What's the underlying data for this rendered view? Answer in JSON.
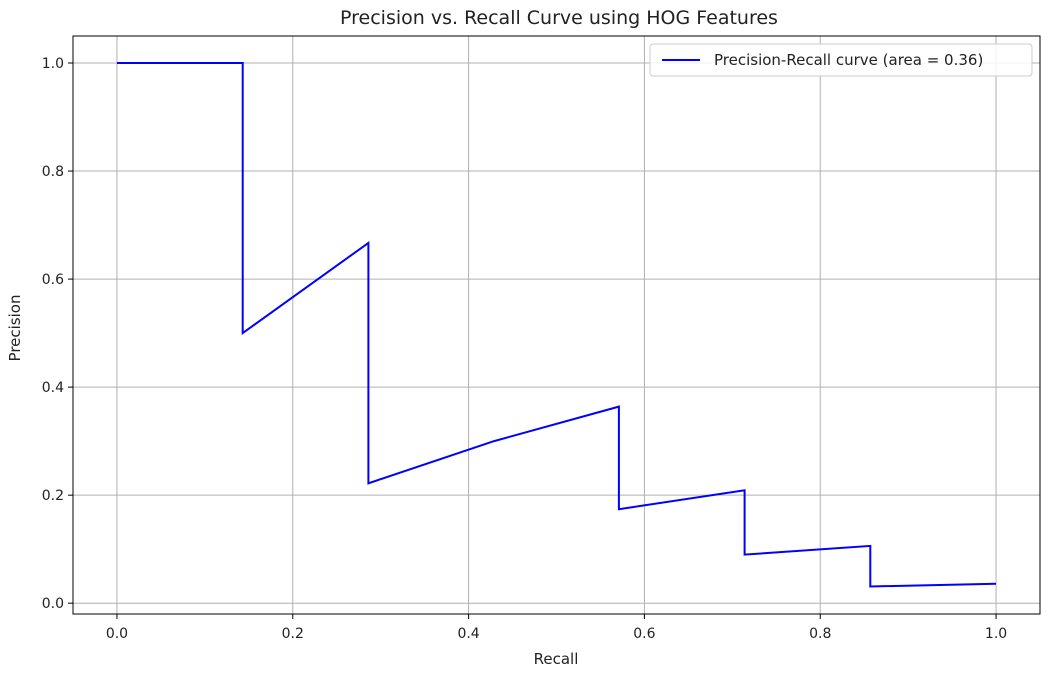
{
  "chart_data": {
    "type": "line",
    "title": "Precision vs. Recall Curve using HOG Features",
    "xlabel": "Recall",
    "ylabel": "Precision",
    "xlim": [
      -0.05,
      1.05
    ],
    "ylim": [
      -0.02,
      1.05
    ],
    "xticks": [
      0.0,
      0.2,
      0.4,
      0.6,
      0.8,
      1.0
    ],
    "xtick_labels": [
      "0.0",
      "0.2",
      "0.4",
      "0.6",
      "0.8",
      "1.0"
    ],
    "yticks": [
      0.0,
      0.2,
      0.4,
      0.6,
      0.8,
      1.0
    ],
    "ytick_labels": [
      "0.0",
      "0.2",
      "0.4",
      "0.6",
      "0.8",
      "1.0"
    ],
    "grid": true,
    "legend_position": "top-right",
    "series": [
      {
        "name": "Precision-Recall curve (area = 0.36)",
        "color": "#0000ff",
        "x": [
          0.0,
          0.143,
          0.143,
          0.286,
          0.286,
          0.429,
          0.571,
          0.571,
          0.714,
          0.714,
          0.857,
          0.857,
          1.0
        ],
        "y": [
          1.0,
          1.0,
          0.5,
          0.667,
          0.222,
          0.3,
          0.364,
          0.174,
          0.209,
          0.09,
          0.106,
          0.031,
          0.036
        ]
      }
    ]
  }
}
